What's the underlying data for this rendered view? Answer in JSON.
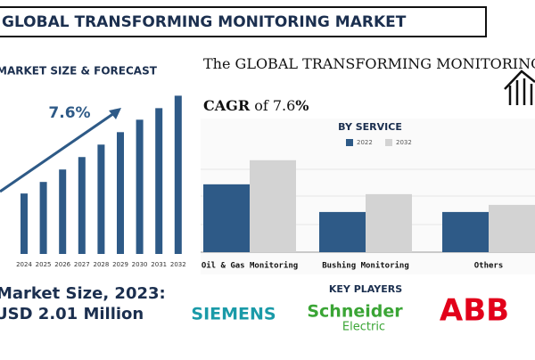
{
  "header": {
    "title": "GLOBAL TRANSFORMING MONITORING MARKET"
  },
  "chart_data": [
    {
      "type": "bar",
      "title": "MARKET SIZE & FORECAST",
      "annotation": "7.6%",
      "categories": [
        "2024",
        "2025",
        "2026",
        "2027",
        "2028",
        "2029",
        "2030",
        "2031",
        "2032"
      ],
      "values": [
        68,
        81,
        95,
        109,
        123,
        137,
        151,
        164,
        178
      ],
      "color": "#2e5a87"
    },
    {
      "type": "grouped-bar",
      "title": "BY SERVICE",
      "categories": [
        "Oil & Gas Monitoring",
        "Bushing Monitoring",
        "Others"
      ],
      "series": [
        {
          "name": "2022",
          "color": "#2e5a87",
          "values": [
            76,
            45,
            45
          ]
        },
        {
          "name": "2032",
          "color": "#d3d3d3",
          "values": [
            103,
            65,
            53
          ]
        }
      ]
    }
  ],
  "headline": {
    "text": "The GLOBAL TRANSFORMING MONITORING MARKET is growing at",
    "cagr": "CAGR",
    "of": "of 7.6",
    "pct": "%"
  },
  "market_size": {
    "label": "Market Size, 2023:",
    "value": "USD 2.01 Million"
  },
  "key_players": {
    "title": "KEY PLAYERS",
    "players": [
      "SIEMENS",
      "Schneider",
      "Electric",
      "ABB"
    ]
  }
}
